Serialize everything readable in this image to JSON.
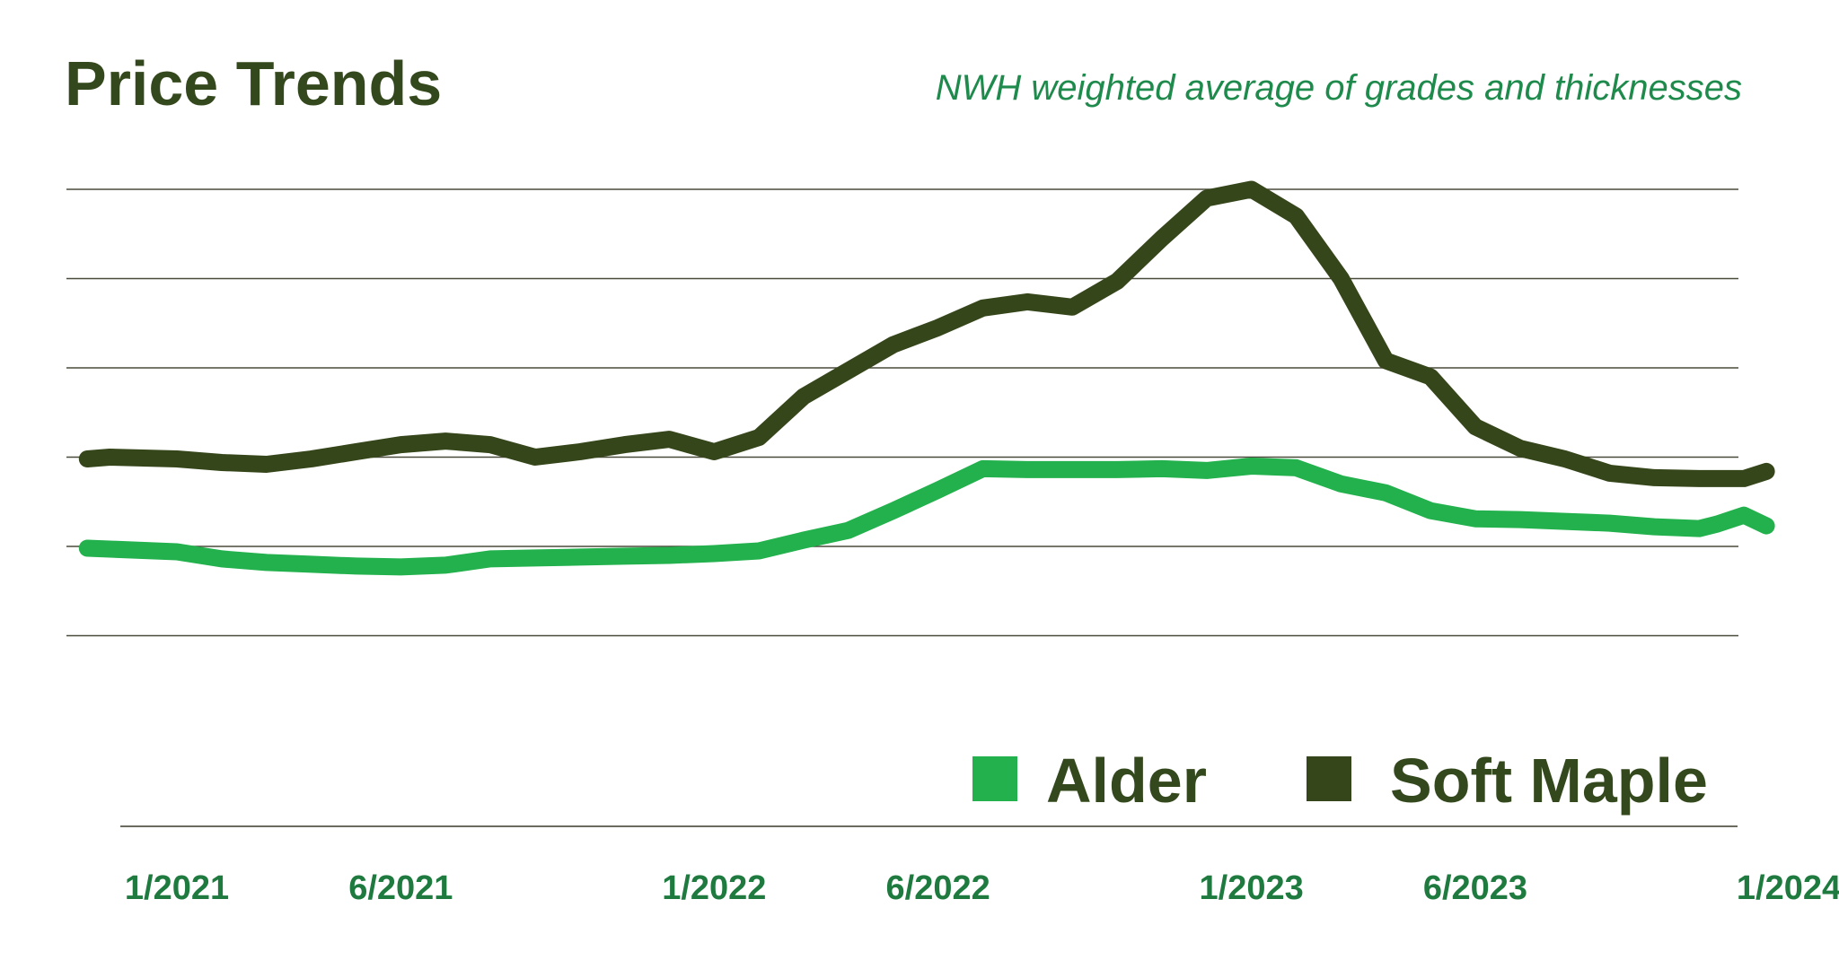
{
  "chart_data": {
    "type": "line",
    "title": "Price Trends",
    "subtitle": "NWH weighted average of grades and thicknesses",
    "xlabel": "",
    "ylabel": "",
    "x_tick_labels": [
      "1/2021",
      "6/2021",
      "1/2022",
      "6/2022",
      "1/2023",
      "6/2023",
      "1/2024"
    ],
    "x_tick_values": [
      0,
      5,
      12,
      17,
      24,
      29,
      36
    ],
    "xlim": [
      -2,
      36
    ],
    "ylim": [
      0,
      6
    ],
    "y_gridlines": [
      1,
      2,
      3,
      4,
      5,
      6
    ],
    "grid": true,
    "legend_position": "bottom-right",
    "series": [
      {
        "name": "Alder",
        "color": "#22b14c",
        "x": [
          -2,
          -1.5,
          0,
          1,
          2,
          3,
          4,
          5,
          6,
          7,
          8,
          9,
          10,
          11,
          12,
          13,
          14,
          15,
          16,
          17,
          18,
          19,
          20,
          21,
          22,
          23,
          24,
          25,
          26,
          27,
          28,
          29,
          30,
          31,
          32,
          33,
          34,
          34.4,
          35,
          35.5
        ],
        "values": [
          1.98,
          1.97,
          1.94,
          1.86,
          1.82,
          1.8,
          1.78,
          1.77,
          1.79,
          1.86,
          1.87,
          1.88,
          1.89,
          1.9,
          1.92,
          1.95,
          2.07,
          2.18,
          2.4,
          2.63,
          2.87,
          2.86,
          2.86,
          2.86,
          2.87,
          2.85,
          2.9,
          2.88,
          2.7,
          2.6,
          2.4,
          2.31,
          2.3,
          2.28,
          2.26,
          2.22,
          2.2,
          2.25,
          2.35,
          2.23
        ]
      },
      {
        "name": "Soft Maple",
        "color": "#36461b",
        "x": [
          -2,
          -1.5,
          0,
          1,
          2,
          3,
          4,
          5,
          6,
          7,
          8,
          9,
          10,
          11,
          12,
          13,
          14,
          15,
          16,
          17,
          18,
          19,
          20,
          21,
          22,
          23,
          24,
          25,
          26,
          27,
          28,
          29,
          30,
          31,
          32,
          33,
          34,
          35,
          35.5
        ],
        "values": [
          2.98,
          3.0,
          2.98,
          2.94,
          2.92,
          2.98,
          3.06,
          3.14,
          3.18,
          3.14,
          3.0,
          3.06,
          3.14,
          3.2,
          3.06,
          3.22,
          3.68,
          3.97,
          4.26,
          4.45,
          4.67,
          4.74,
          4.68,
          4.97,
          5.45,
          5.9,
          6.0,
          5.7,
          5.0,
          4.08,
          3.9,
          3.34,
          3.1,
          2.98,
          2.82,
          2.77,
          2.76,
          2.76,
          2.84
        ]
      }
    ]
  }
}
